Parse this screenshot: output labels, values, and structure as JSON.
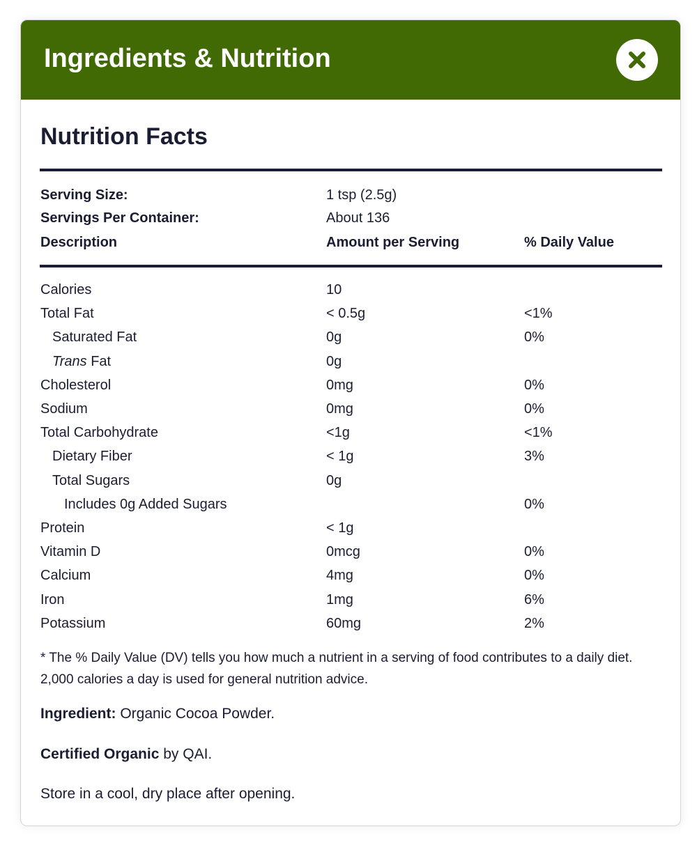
{
  "header": {
    "title": "Ingredients & Nutrition"
  },
  "nutrition": {
    "title": "Nutrition Facts",
    "serving_size": {
      "label": "Serving Size:",
      "value": "1 tsp (2.5g)"
    },
    "servings_per_container": {
      "label": "Servings Per Container:",
      "value": "About 136"
    },
    "columns": [
      "Description",
      "Amount per Serving",
      "% Daily Value"
    ],
    "rows": [
      {
        "label": "Calories",
        "amount": "10"
      },
      {
        "label": "Total Fat",
        "amount": "< 0.5g",
        "dv": "<1%"
      },
      {
        "label": "Saturated Fat",
        "amount": "0g",
        "dv": "0%"
      },
      {
        "label_italic": "Trans",
        "label": "Fat",
        "amount": "0g"
      },
      {
        "label": "Cholesterol",
        "amount": "0mg",
        "dv": "0%"
      },
      {
        "label": "Sodium",
        "amount": "0mg",
        "dv": "0%"
      },
      {
        "label": "Total Carbohydrate",
        "amount": "<1g",
        "dv": "<1%"
      },
      {
        "label": "Dietary Fiber",
        "amount": "< 1g",
        "dv": "3%"
      },
      {
        "label": "Total Sugars",
        "amount": "0g"
      },
      {
        "label": "Includes 0g Added Sugars",
        "dv": "0%"
      },
      {
        "label": "Protein",
        "amount": "< 1g"
      },
      {
        "label": "Vitamin D",
        "amount": "0mcg",
        "dv": "0%"
      },
      {
        "label": "Calcium",
        "amount": "4mg",
        "dv": "0%"
      },
      {
        "label": "Iron",
        "amount": "1mg",
        "dv": "6%"
      },
      {
        "label": "Potassium",
        "amount": "60mg",
        "dv": "2%"
      }
    ],
    "footnote": "* The % Daily Value (DV) tells you how much a nutrient in a serving of food contributes to a daily diet. 2,000 calories a day is used for general nutrition advice."
  },
  "ingredient": {
    "label": "Ingredient:",
    "text": "Organic Cocoa Powder."
  },
  "certified": {
    "label": "Certified Organic",
    "text": "by QAI."
  },
  "storage": "Store in a cool, dry place after opening."
}
